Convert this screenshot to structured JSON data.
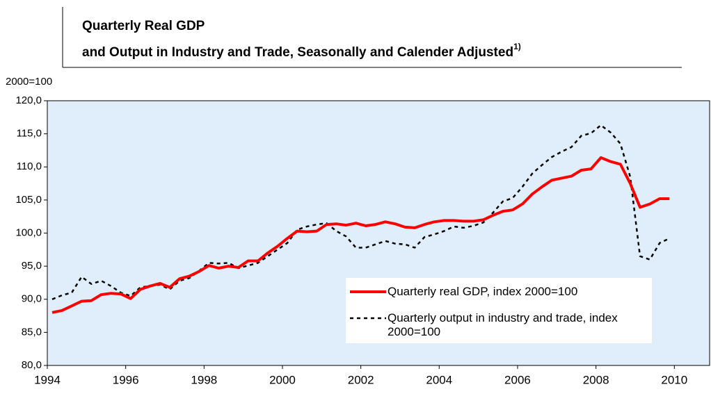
{
  "chart_data": {
    "type": "line",
    "title": "Quarterly Real GDP",
    "subtitle": "and Output in Industry and Trade, Seasonally and Calender Adjusted",
    "title_note": "1)",
    "y_unit_label": "2000=100",
    "x": [
      1994.125,
      1994.375,
      1994.625,
      1994.875,
      1995.125,
      1995.375,
      1995.625,
      1995.875,
      1996.125,
      1996.375,
      1996.625,
      1996.875,
      1997.125,
      1997.375,
      1997.625,
      1997.875,
      1998.125,
      1998.375,
      1998.625,
      1998.875,
      1999.125,
      1999.375,
      1999.625,
      1999.875,
      2000.125,
      2000.375,
      2000.625,
      2000.875,
      2001.125,
      2001.375,
      2001.625,
      2001.875,
      2002.125,
      2002.375,
      2002.625,
      2002.875,
      2003.125,
      2003.375,
      2003.625,
      2003.875,
      2004.125,
      2004.375,
      2004.625,
      2004.875,
      2005.125,
      2005.375,
      2005.625,
      2005.875,
      2006.125,
      2006.375,
      2006.625,
      2006.875,
      2007.125,
      2007.375,
      2007.625,
      2007.875,
      2008.125,
      2008.375,
      2008.625,
      2008.875,
      2009.125,
      2009.375,
      2009.625,
      2009.875
    ],
    "series": [
      {
        "name": "Quarterly real GDP, index 2000=100",
        "color": "#ff0000",
        "style": "solid",
        "values": [
          88.0,
          88.3,
          89.0,
          89.7,
          89.8,
          90.7,
          90.9,
          90.8,
          90.1,
          91.5,
          92.0,
          92.4,
          91.8,
          93.1,
          93.5,
          94.2,
          95.1,
          94.7,
          95.0,
          94.8,
          95.8,
          95.8,
          97.0,
          98.0,
          99.2,
          100.3,
          100.2,
          100.3,
          101.3,
          101.4,
          101.2,
          101.5,
          101.1,
          101.3,
          101.7,
          101.4,
          100.9,
          100.8,
          101.3,
          101.7,
          101.9,
          101.9,
          101.8,
          101.8,
          102.0,
          102.7,
          103.3,
          103.5,
          104.4,
          105.9,
          107.0,
          108.0,
          108.3,
          108.6,
          109.5,
          109.7,
          111.4,
          110.8,
          110.4,
          107.5,
          103.9,
          104.4,
          105.2,
          105.2
        ]
      },
      {
        "name": "Quarterly output in industry and trade, index 2000=100",
        "color": "#000000",
        "style": "dashed",
        "values": [
          90.0,
          90.6,
          91.0,
          93.4,
          92.3,
          92.8,
          92.0,
          91.0,
          90.5,
          91.8,
          92.0,
          92.2,
          91.5,
          92.8,
          93.2,
          94.3,
          95.5,
          95.4,
          95.5,
          94.7,
          95.1,
          95.5,
          96.5,
          97.5,
          98.5,
          100.5,
          101.0,
          101.3,
          101.5,
          100.3,
          99.5,
          97.8,
          97.8,
          98.3,
          98.8,
          98.4,
          98.3,
          97.8,
          99.4,
          99.8,
          100.3,
          101.0,
          100.8,
          101.1,
          101.6,
          103.1,
          104.8,
          105.3,
          107.0,
          109.0,
          110.3,
          111.5,
          112.3,
          113.0,
          114.7,
          115.1,
          116.3,
          115.2,
          113.5,
          108.5,
          96.5,
          96.0,
          98.5,
          99.2
        ]
      }
    ],
    "xlim": [
      1994,
      2010.9
    ],
    "xticks": [
      1994,
      1996,
      1998,
      2000,
      2002,
      2004,
      2006,
      2008,
      2010
    ],
    "ylim": [
      80,
      120
    ],
    "yticks": [
      {
        "value": 80,
        "label": "80,0"
      },
      {
        "value": 85,
        "label": "85,0"
      },
      {
        "value": 90,
        "label": "90,0"
      },
      {
        "value": 95,
        "label": "95,0"
      },
      {
        "value": 100,
        "label": "100,0"
      },
      {
        "value": 105,
        "label": "105,0"
      },
      {
        "value": 110,
        "label": "110,0"
      },
      {
        "value": 115,
        "label": "115,0"
      },
      {
        "value": 120,
        "label": "120,0"
      }
    ],
    "background": "#dfeefa",
    "legend": "lower right"
  }
}
